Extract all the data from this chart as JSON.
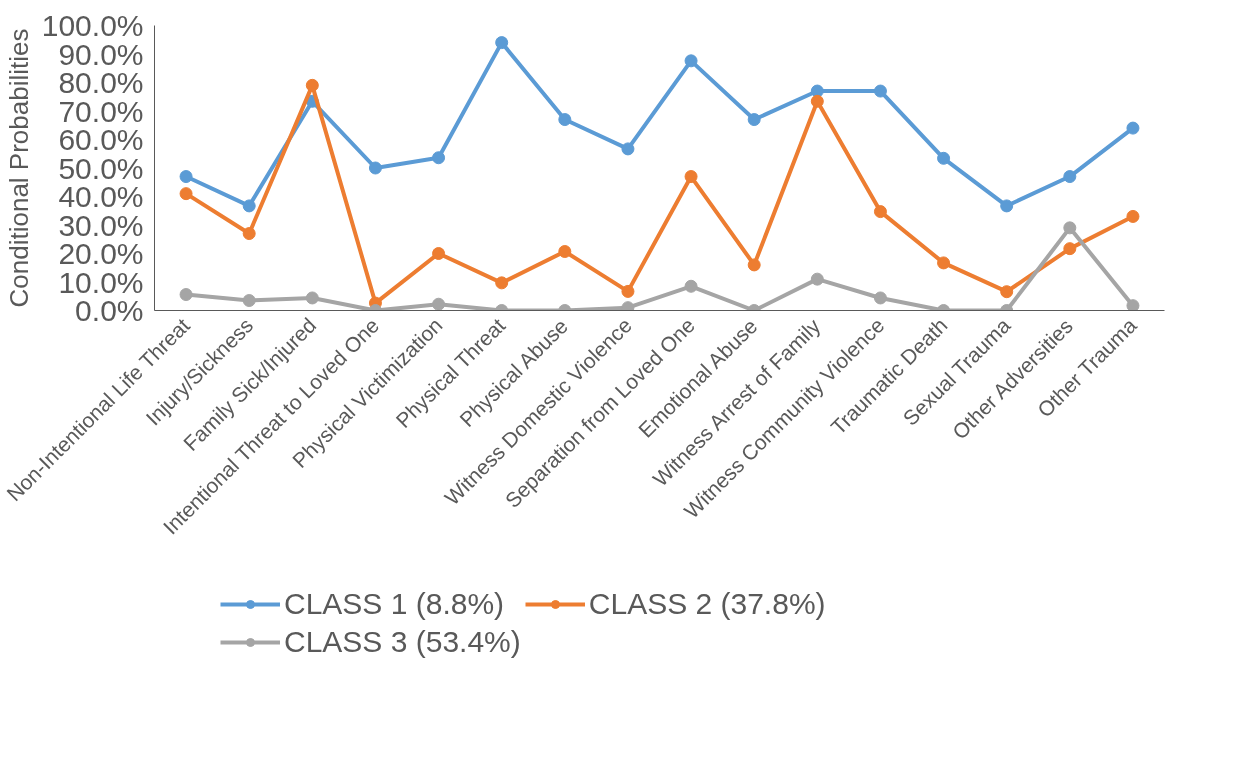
{
  "chart_data": {
    "type": "line",
    "ylabel": "Conditional Probabilities",
    "categories": [
      "Non-Intentional Life Threat",
      "Injury/Sickness",
      "Family Sick/Injured",
      "Intentional Threat to Loved One",
      "Physical Victimization",
      "Physical Threat",
      "Physical Abuse",
      "Witness Domestic Violence",
      "Separation from Loved One",
      "Emotional Abuse",
      "Witness Arrest of Family",
      "Witness Community Violence",
      "Traumatic Death",
      "Sexual Trauma",
      "Other Adversities",
      "Other Trauma"
    ],
    "series": [
      {
        "name": "CLASS 1 (8.8%)",
        "color": "#5b9bd5",
        "values": [
          47,
          36.7,
          73.4,
          50,
          53.6,
          94,
          67,
          56.7,
          87.6,
          67,
          77,
          77,
          53.4,
          36.7,
          47,
          64
        ]
      },
      {
        "name": "CLASS 2 (37.8%)",
        "color": "#ed7d31",
        "values": [
          41,
          27,
          79,
          2.6,
          20,
          9.7,
          20.7,
          6.7,
          47,
          16,
          73.4,
          34.7,
          16.7,
          6.6,
          21.7,
          33
        ]
      },
      {
        "name": "CLASS 3 (53.4%)",
        "color": "#a5a5a5",
        "values": [
          5.6,
          3.5,
          4.4,
          0,
          2.2,
          0,
          0,
          1,
          8.5,
          0,
          11,
          4.4,
          0,
          0,
          29,
          1.7
        ]
      }
    ],
    "ylim": [
      0,
      100
    ],
    "yticks": [
      {
        "value": 0,
        "label": "0.0%"
      },
      {
        "value": 10,
        "label": "10.0%"
      },
      {
        "value": 20,
        "label": "20.0%"
      },
      {
        "value": 30,
        "label": "30.0%"
      },
      {
        "value": 40,
        "label": "40.0%"
      },
      {
        "value": 50,
        "label": "50.0%"
      },
      {
        "value": 60,
        "label": "60.0%"
      },
      {
        "value": 70,
        "label": "70.0%"
      },
      {
        "value": 80,
        "label": "80.0%"
      },
      {
        "value": 90,
        "label": "90.0%"
      },
      {
        "value": 100,
        "label": "100.0%"
      }
    ],
    "marker": "circle",
    "line_style": "solid",
    "grid": false,
    "legend": "bottom"
  }
}
